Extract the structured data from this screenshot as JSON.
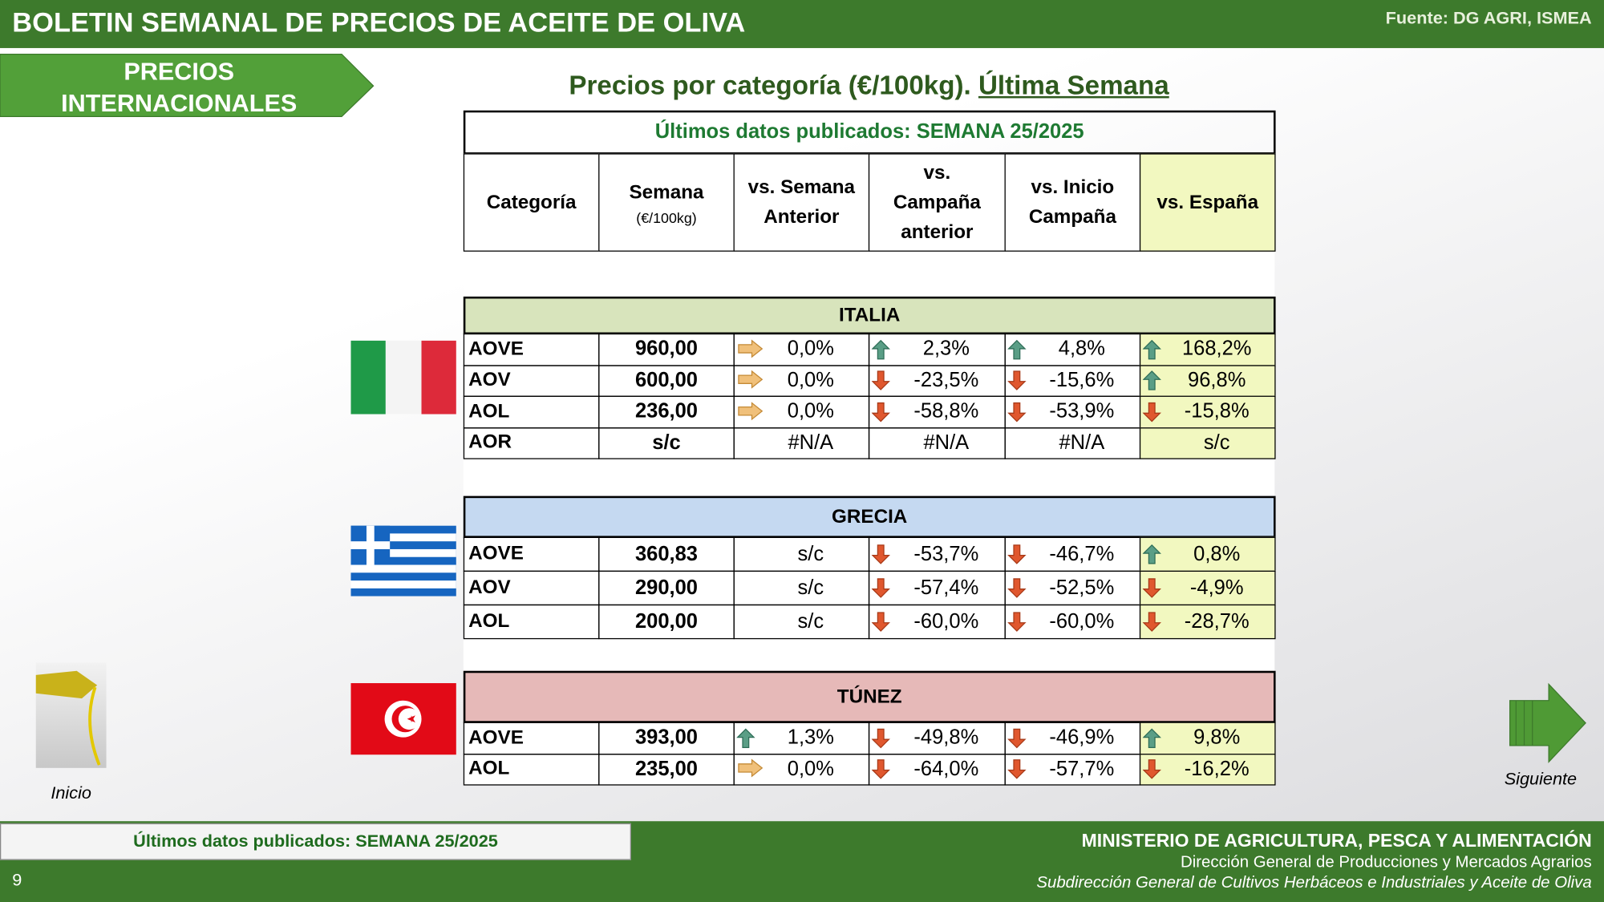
{
  "header": {
    "title": "BOLETIN SEMANAL DE PRECIOS DE ACEITE DE OLIVA",
    "source": "Fuente: DG AGRI, ISMEA"
  },
  "section_label": [
    "PRECIOS",
    "INTERNACIONALES"
  ],
  "subtitle": {
    "text": "Precios por categoría (€/100kg).",
    "emphasis": "Última Semana"
  },
  "table": {
    "caption": "Últimos datos publicados: SEMANA 25/2025",
    "columns": [
      "Categoría",
      "Semana",
      "(€/100kg)",
      "vs. Semana Anterior",
      "vs. Campaña anterior",
      "vs. Inicio Campaña",
      "vs. España"
    ],
    "countries": [
      {
        "name": "ITALIA",
        "rows": [
          {
            "category": "AOVE",
            "price": "960,00",
            "changes": [
              {
                "text": "0,0%",
                "trend": "right"
              },
              {
                "text": "2,3%",
                "trend": "up"
              },
              {
                "text": "4,8%",
                "trend": "up"
              },
              {
                "text": "168,2%",
                "trend": "up"
              }
            ]
          },
          {
            "category": "AOV",
            "price": "600,00",
            "changes": [
              {
                "text": "0,0%",
                "trend": "right"
              },
              {
                "text": "-23,5%",
                "trend": "down"
              },
              {
                "text": "-15,6%",
                "trend": "down"
              },
              {
                "text": "96,8%",
                "trend": "up"
              }
            ]
          },
          {
            "category": "AOL",
            "price": "236,00",
            "changes": [
              {
                "text": "0,0%",
                "trend": "right"
              },
              {
                "text": "-58,8%",
                "trend": "down"
              },
              {
                "text": "-53,9%",
                "trend": "down"
              },
              {
                "text": "-15,8%",
                "trend": "down"
              }
            ]
          },
          {
            "category": "AOR",
            "price": "s/c",
            "changes": [
              {
                "text": "#N/A"
              },
              {
                "text": "#N/A"
              },
              {
                "text": "#N/A"
              },
              {
                "text": "s/c"
              }
            ]
          }
        ]
      },
      {
        "name": "GRECIA",
        "rows": [
          {
            "category": "AOVE",
            "price": "360,83",
            "changes": [
              {
                "text": "s/c"
              },
              {
                "text": "-53,7%",
                "trend": "down"
              },
              {
                "text": "-46,7%",
                "trend": "down"
              },
              {
                "text": "0,8%",
                "trend": "up"
              }
            ]
          },
          {
            "category": "AOV",
            "price": "290,00",
            "changes": [
              {
                "text": "s/c"
              },
              {
                "text": "-57,4%",
                "trend": "down"
              },
              {
                "text": "-52,5%",
                "trend": "down"
              },
              {
                "text": "-4,9%",
                "trend": "down"
              }
            ]
          },
          {
            "category": "AOL",
            "price": "200,00",
            "changes": [
              {
                "text": "s/c"
              },
              {
                "text": "-60,0%",
                "trend": "down"
              },
              {
                "text": "-60,0%",
                "trend": "down"
              },
              {
                "text": "-28,7%",
                "trend": "down"
              }
            ]
          }
        ]
      },
      {
        "name": "TÚNEZ",
        "rows": [
          {
            "category": "AOVE",
            "price": "393,00",
            "changes": [
              {
                "text": "1,3%",
                "trend": "up"
              },
              {
                "text": "-49,8%",
                "trend": "down"
              },
              {
                "text": "-46,9%",
                "trend": "down"
              },
              {
                "text": "9,8%",
                "trend": "up"
              }
            ]
          },
          {
            "category": "AOL",
            "price": "235,00",
            "changes": [
              {
                "text": "0,0%",
                "trend": "right"
              },
              {
                "text": "-64,0%",
                "trend": "down"
              },
              {
                "text": "-57,7%",
                "trend": "down"
              },
              {
                "text": "-16,2%",
                "trend": "down"
              }
            ]
          }
        ]
      }
    ]
  },
  "nav": {
    "home": "Inicio",
    "next": "Siguiente"
  },
  "footer": {
    "note": "Últimos datos publicados: SEMANA 25/2025",
    "page": "9",
    "ministry": "MINISTERIO DE AGRICULTURA, PESCA Y ALIMENTACIÓN",
    "direction": "Dirección General de Producciones y Mercados Agrarios",
    "subdirection": "Subdirección General de Cultivos Herbáceos e Industriales y Aceite de Oliva"
  }
}
